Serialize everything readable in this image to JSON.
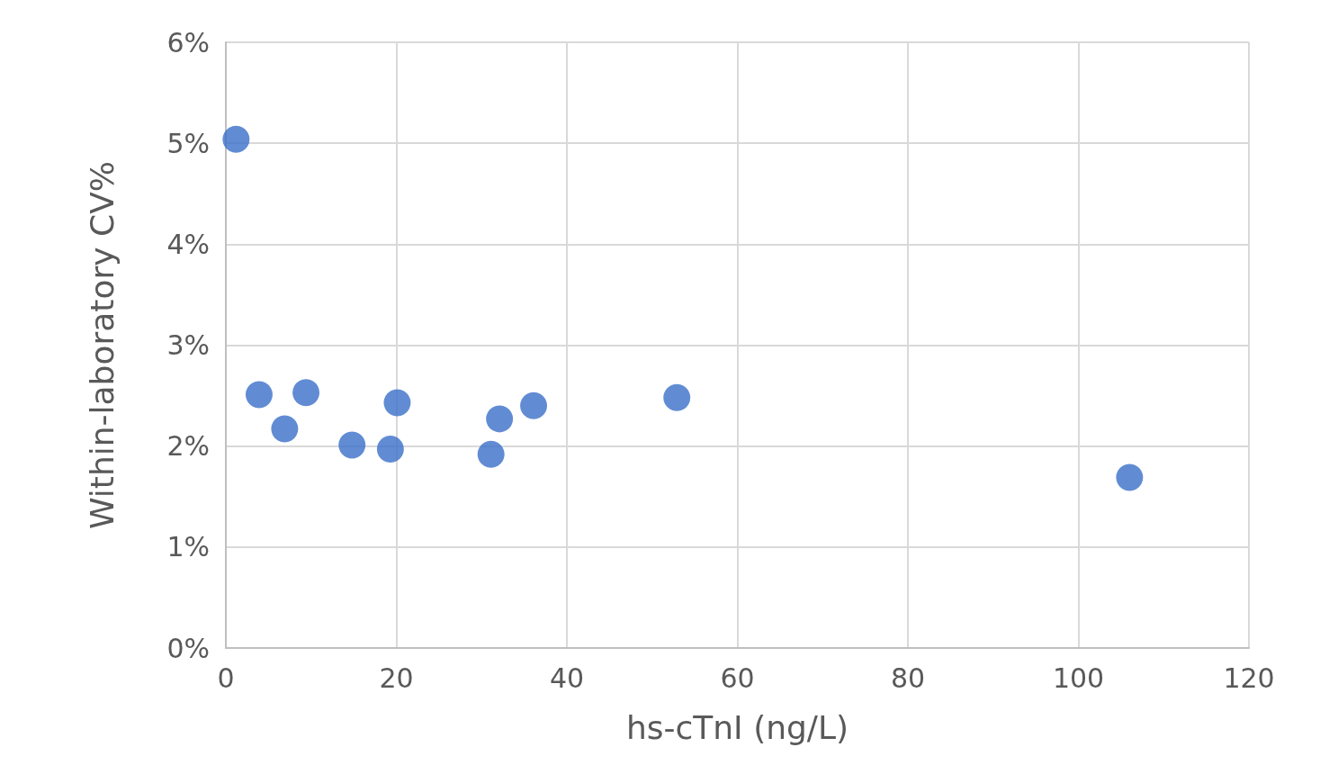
{
  "chart_data": {
    "type": "scatter",
    "xlabel": "hs-cTnI (ng/L)",
    "ylabel": "Within-laboratory CV%",
    "x": [
      1.2,
      3.9,
      6.9,
      9.4,
      14.8,
      19.3,
      20.1,
      31.1,
      32.1,
      36.1,
      52.9,
      106.0
    ],
    "series": [
      {
        "color": "#3a6fc8",
        "values": [
          5.04,
          2.51,
          2.17,
          2.53,
          2.01,
          1.97,
          2.43,
          1.92,
          2.27,
          2.4,
          2.48,
          1.69
        ]
      }
    ],
    "xlim": [
      0,
      120
    ],
    "xticks": [
      0,
      20,
      40,
      60,
      80,
      100,
      120
    ],
    "ylim": [
      0,
      6
    ],
    "yticks": [
      {
        "value": 0,
        "label": "0%"
      },
      {
        "value": 1,
        "label": "1%"
      },
      {
        "value": 2,
        "label": "2%"
      },
      {
        "value": 3,
        "label": "3%"
      },
      {
        "value": 4,
        "label": "4%"
      },
      {
        "value": 5,
        "label": "5%"
      },
      {
        "value": 6,
        "label": "6%"
      }
    ],
    "grid": true,
    "marker": "circle"
  }
}
